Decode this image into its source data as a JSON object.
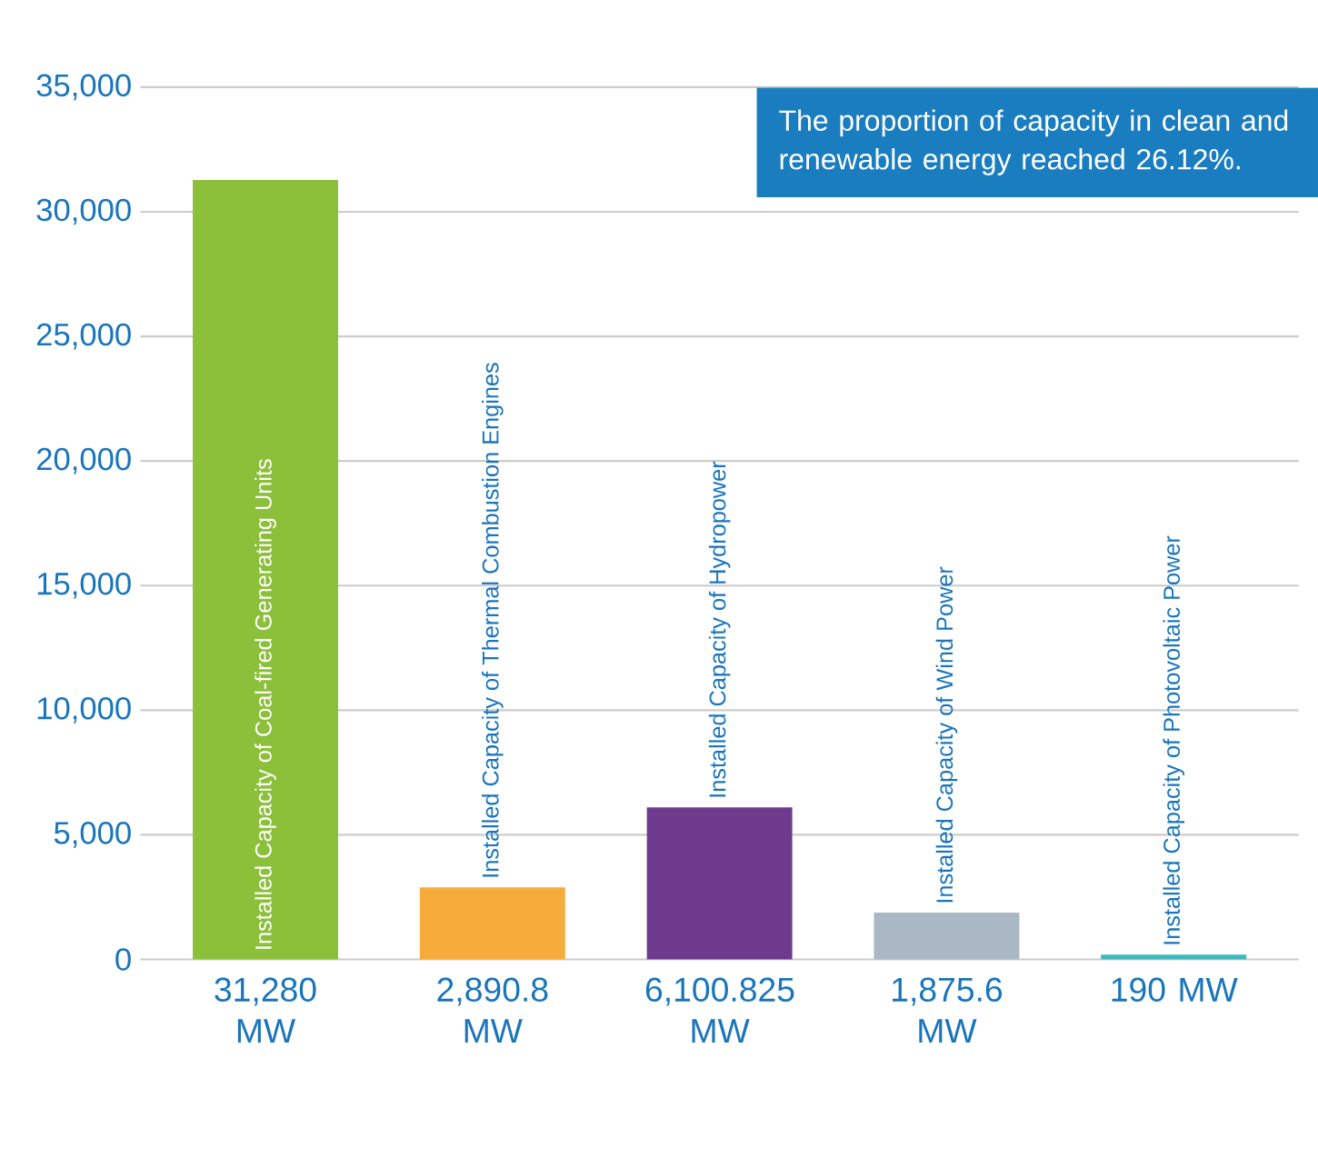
{
  "chart_data": {
    "type": "bar",
    "categories": [
      "Installed Capacity of Coal-fired Generating Units",
      "Installed Capacity of Thermal Combustion Engines",
      "Installed Capacity of Hydropower",
      "Installed Capacity of Wind Power",
      "Installed Capacity of Photovoltaic Power"
    ],
    "values": [
      31280,
      2890.8,
      6100.825,
      1875.6,
      190
    ],
    "colors": [
      "#8cbf3a",
      "#f6ac3a",
      "#6e3a8e",
      "#a9b8c4",
      "#3db8bb"
    ],
    "value_labels": [
      "31,280 MW",
      "2,890.8 MW",
      "6,100.825 MW",
      "1,875.6 MW",
      "190 MW"
    ],
    "ylim": [
      0,
      35000
    ],
    "yticks": [
      0,
      {
        "value": 5000,
        "label": "5,000"
      },
      {
        "value": 10000,
        "label": "10,000"
      },
      {
        "value": 15000,
        "label": "15,000"
      },
      {
        "value": 20000,
        "label": "20,000"
      },
      {
        "value": 25000,
        "label": "25,000"
      },
      {
        "value": 30000,
        "label": "30,000"
      },
      {
        "value": 35000,
        "label": "35,000"
      }
    ],
    "grid": "y",
    "annotations": [
      "The proportion of capacity in clean and renewable energy reached 26.12%."
    ]
  }
}
